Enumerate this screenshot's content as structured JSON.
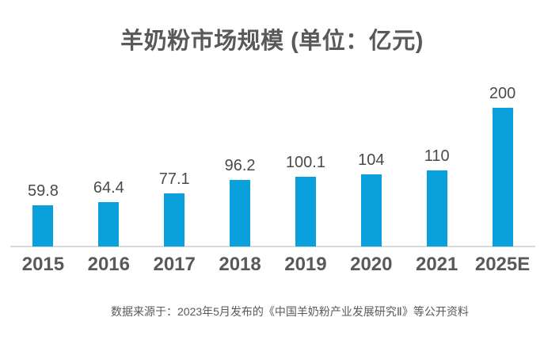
{
  "title": "羊奶粉市场规模 (单位：亿元)",
  "source_note": "数据来源于：2023年5月发布的《中国羊奶粉产业发展研究Ⅱ》等公开资料",
  "colors": {
    "bar": "#0aa0dc",
    "title_text": "#595959",
    "value_label_text": "#4a4a4a",
    "axis_label_text": "#595959",
    "axis_line": "#d9d9d9",
    "background": "#ffffff"
  },
  "chart_data": {
    "type": "bar",
    "title": "羊奶粉市场规模 (单位：亿元)",
    "categories": [
      "2015",
      "2016",
      "2017",
      "2018",
      "2019",
      "2020",
      "2021",
      "2025E"
    ],
    "values": [
      59.8,
      64.4,
      77.1,
      96.2,
      100.1,
      104,
      110,
      200
    ],
    "value_labels": [
      "59.8",
      "64.4",
      "77.1",
      "96.2",
      "100.1",
      "104",
      "110",
      "200"
    ],
    "xlabel": "",
    "ylabel": "",
    "ylim": [
      0,
      220
    ],
    "grid": false,
    "legend": null,
    "annotation": "数据来源于：2023年5月发布的《中国羊奶粉产业发展研究Ⅱ》等公开资料"
  }
}
